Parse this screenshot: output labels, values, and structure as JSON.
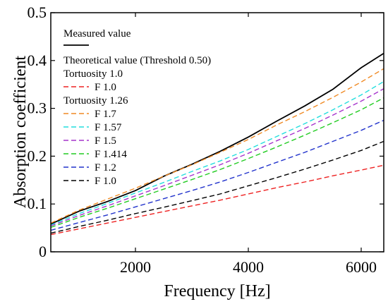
{
  "chart_data": {
    "type": "line",
    "title": "",
    "xlabel": "Frequency [Hz]",
    "ylabel": "Absorption coefficient",
    "xlim": [
      500,
      6400
    ],
    "ylim": [
      0,
      0.5
    ],
    "grid": false,
    "legend_position": "top-left",
    "x_ticks": [
      2000,
      4000,
      6000
    ],
    "x_tick_labels": [
      "2000",
      "4000",
      "6000"
    ],
    "y_ticks": [
      0,
      0.1,
      0.2,
      0.3,
      0.4,
      0.5
    ],
    "y_tick_labels": [
      "0",
      "0.1",
      "0.2",
      "0.3",
      "0.4",
      "0.5"
    ],
    "legend_headers": {
      "theoretical": "Theoretical value (Threshold 0.50)",
      "tortuosity_a": "Tortuosity 1.0",
      "tortuosity_b": "Tortuosity 1.26"
    },
    "x": [
      500,
      1000,
      1500,
      2000,
      2500,
      3000,
      3500,
      4000,
      4500,
      5000,
      5500,
      6000,
      6400
    ],
    "series": [
      {
        "name": "Measured value",
        "group": "measured",
        "color": "#000000",
        "dash": "solid",
        "values": [
          0.058,
          0.085,
          0.105,
          0.128,
          0.158,
          0.183,
          0.21,
          0.24,
          0.273,
          0.305,
          0.34,
          0.385,
          0.415
        ]
      },
      {
        "name": "F 1.0",
        "group": "tortuosity_a",
        "color": "#ee2222",
        "dash": "dashed",
        "values": [
          0.036,
          0.048,
          0.06,
          0.072,
          0.084,
          0.096,
          0.108,
          0.121,
          0.134,
          0.146,
          0.159,
          0.171,
          0.181
        ]
      },
      {
        "name": "F 1.7",
        "group": "tortuosity_b",
        "color": "#f08a24",
        "dash": "dashed",
        "values": [
          0.06,
          0.087,
          0.11,
          0.133,
          0.158,
          0.182,
          0.208,
          0.235,
          0.265,
          0.293,
          0.323,
          0.355,
          0.383
        ]
      },
      {
        "name": "F 1.57",
        "group": "tortuosity_b",
        "color": "#22dede",
        "dash": "dashed",
        "values": [
          0.056,
          0.08,
          0.101,
          0.123,
          0.145,
          0.168,
          0.19,
          0.214,
          0.241,
          0.268,
          0.297,
          0.328,
          0.356
        ]
      },
      {
        "name": "F 1.5",
        "group": "tortuosity_b",
        "color": "#a633cc",
        "dash": "dashed",
        "values": [
          0.054,
          0.076,
          0.096,
          0.117,
          0.138,
          0.16,
          0.182,
          0.206,
          0.232,
          0.258,
          0.286,
          0.315,
          0.341
        ]
      },
      {
        "name": "F 1.414",
        "group": "tortuosity_b",
        "color": "#22cc22",
        "dash": "dashed",
        "values": [
          0.051,
          0.072,
          0.091,
          0.111,
          0.131,
          0.151,
          0.172,
          0.195,
          0.219,
          0.244,
          0.27,
          0.297,
          0.322
        ]
      },
      {
        "name": "F 1.2",
        "group": "tortuosity_b",
        "color": "#2233cc",
        "dash": "dashed",
        "values": [
          0.045,
          0.061,
          0.077,
          0.094,
          0.111,
          0.128,
          0.146,
          0.166,
          0.187,
          0.208,
          0.231,
          0.254,
          0.275
        ]
      },
      {
        "name": "F 1.0",
        "group": "tortuosity_b",
        "color": "#000000",
        "dash": "dashed",
        "values": [
          0.039,
          0.053,
          0.066,
          0.08,
          0.093,
          0.107,
          0.121,
          0.138,
          0.155,
          0.173,
          0.192,
          0.212,
          0.231
        ]
      }
    ]
  }
}
